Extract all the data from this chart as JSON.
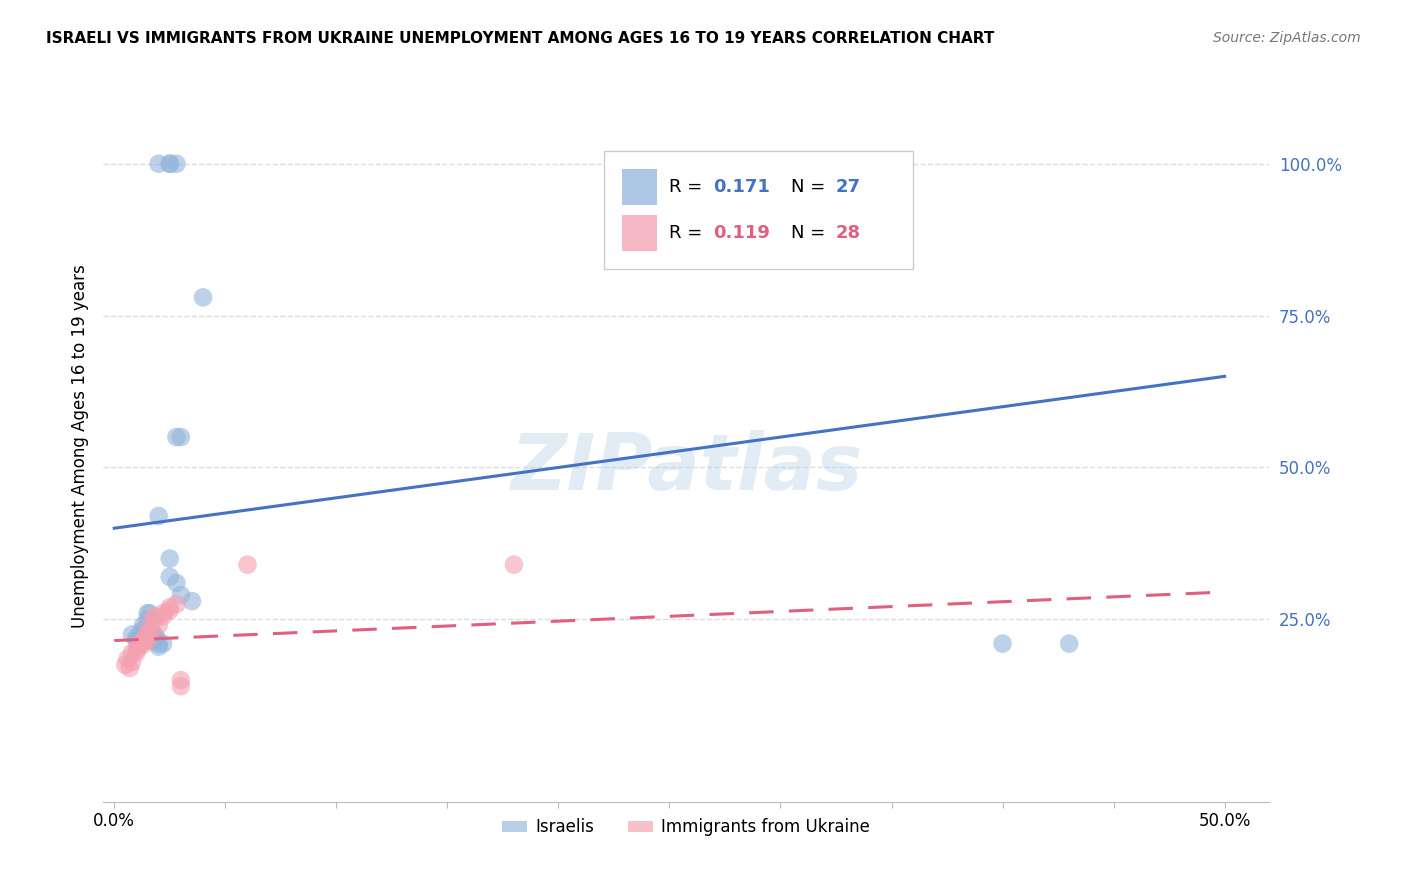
{
  "title": "ISRAELI VS IMMIGRANTS FROM UKRAINE UNEMPLOYMENT AMONG AGES 16 TO 19 YEARS CORRELATION CHART",
  "source": "Source: ZipAtlas.com",
  "ylabel": "Unemployment Among Ages 16 to 19 years",
  "xlim": [
    -0.005,
    0.52
  ],
  "ylim": [
    -0.05,
    1.12
  ],
  "xtick_vals": [
    0.0,
    0.05,
    0.1,
    0.15,
    0.2,
    0.25,
    0.3,
    0.35,
    0.4,
    0.45,
    0.5
  ],
  "xtick_labels": [
    "0.0%",
    "",
    "",
    "",
    "",
    "",
    "",
    "",
    "",
    "",
    "50.0%"
  ],
  "ytick_right_values": [
    1.0,
    0.75,
    0.5,
    0.25
  ],
  "ytick_right_labels": [
    "100.0%",
    "75.0%",
    "50.0%",
    "25.0%"
  ],
  "legend_labels": [
    "Israelis",
    "Immigrants from Ukraine"
  ],
  "color_blue": "#92B4DA",
  "color_pink": "#F4A0B0",
  "color_blue_line": "#4472C4",
  "color_pink_line": "#E06080",
  "watermark": "ZIPatlas",
  "grid_color": "#DDDDDD",
  "blue_trend_y0": 0.4,
  "blue_trend_y1": 0.65,
  "pink_trend_y0": 0.215,
  "pink_trend_y1": 0.295,
  "israelis_x": [
    0.02,
    0.025,
    0.025,
    0.028,
    0.03,
    0.035,
    0.04,
    0.008,
    0.01,
    0.01,
    0.012,
    0.013,
    0.014,
    0.015,
    0.015,
    0.016,
    0.016,
    0.017,
    0.017,
    0.018,
    0.018,
    0.019,
    0.02,
    0.02,
    0.022,
    0.4,
    0.43
  ],
  "israelis_y": [
    0.42,
    0.35,
    0.32,
    0.31,
    0.29,
    0.28,
    0.78,
    0.225,
    0.22,
    0.215,
    0.23,
    0.24,
    0.235,
    0.25,
    0.26,
    0.26,
    0.24,
    0.23,
    0.22,
    0.215,
    0.225,
    0.22,
    0.21,
    0.205,
    0.21,
    0.21,
    0.21
  ],
  "israelis_outlier_x": [
    0.02,
    0.025,
    0.025,
    0.028,
    0.028,
    0.03
  ],
  "israelis_outlier_y": [
    1.0,
    1.0,
    1.0,
    1.0,
    0.55,
    0.55
  ],
  "ukraine_x": [
    0.005,
    0.006,
    0.007,
    0.008,
    0.008,
    0.01,
    0.01,
    0.011,
    0.012,
    0.013,
    0.013,
    0.014,
    0.015,
    0.015,
    0.016,
    0.016,
    0.018,
    0.018,
    0.02,
    0.022,
    0.022,
    0.025,
    0.025,
    0.028,
    0.03,
    0.03,
    0.06,
    0.18
  ],
  "ukraine_y": [
    0.175,
    0.185,
    0.17,
    0.195,
    0.18,
    0.2,
    0.195,
    0.205,
    0.21,
    0.215,
    0.208,
    0.22,
    0.225,
    0.215,
    0.23,
    0.24,
    0.25,
    0.255,
    0.24,
    0.255,
    0.26,
    0.27,
    0.265,
    0.275,
    0.14,
    0.15,
    0.34,
    0.34
  ]
}
